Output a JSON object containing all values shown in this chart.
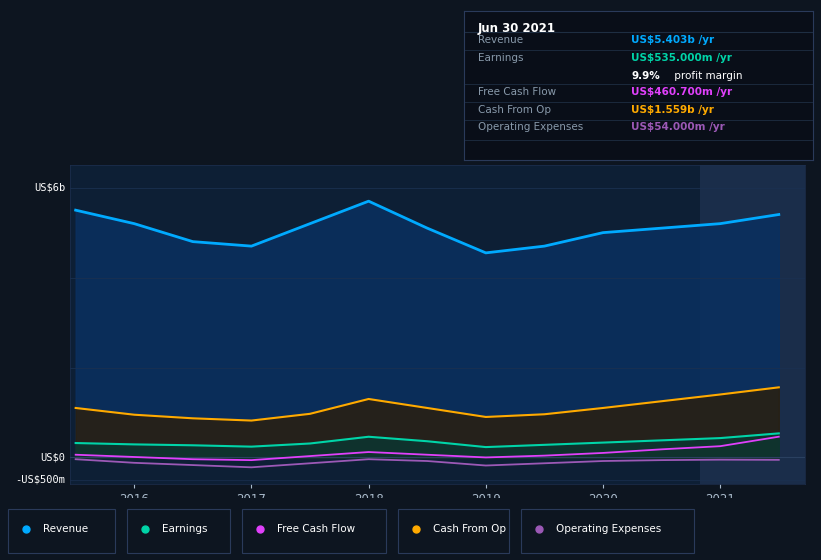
{
  "bg_color": "#0d1520",
  "plot_bg_color": "#0d1f35",
  "x_years": [
    2015.5,
    2016.0,
    2016.5,
    2017.0,
    2017.5,
    2018.0,
    2018.5,
    2019.0,
    2019.5,
    2020.0,
    2020.5,
    2021.0,
    2021.5
  ],
  "revenue": [
    5500,
    5200,
    4800,
    4700,
    5200,
    5700,
    5100,
    4550,
    4700,
    5000,
    5100,
    5200,
    5403
  ],
  "earnings": [
    320,
    290,
    270,
    240,
    310,
    460,
    360,
    230,
    280,
    330,
    380,
    430,
    535
  ],
  "free_cash_flow": [
    60,
    10,
    -40,
    -60,
    30,
    120,
    60,
    0,
    40,
    100,
    180,
    250,
    461
  ],
  "cash_from_op": [
    1100,
    950,
    870,
    820,
    970,
    1300,
    1100,
    900,
    960,
    1100,
    1250,
    1400,
    1559
  ],
  "operating_expenses": [
    -40,
    -120,
    -170,
    -220,
    -130,
    -40,
    -80,
    -180,
    -130,
    -80,
    -60,
    -50,
    -54
  ],
  "revenue_color": "#00aaff",
  "earnings_color": "#00d4a8",
  "free_cash_flow_color": "#e040fb",
  "cash_from_op_color": "#ffaa00",
  "operating_expenses_color": "#9b59b6",
  "revenue_fill": "#0a3060",
  "earnings_fill": "#0d3530",
  "cashop_fill": "#2a2010",
  "ylim_min": -600,
  "ylim_max": 6500,
  "x_min": 2015.45,
  "x_max": 2021.72,
  "highlight_x_start": 2020.83,
  "highlight_x_end": 2021.75,
  "highlight_color": "#1a2d4a",
  "annotation_date": "Jun 30 2021",
  "annotation_revenue": "US$5.403b /yr",
  "annotation_earnings": "US$535.000m /yr",
  "annotation_margin": "9.9% profit margin",
  "annotation_fcf": "US$460.700m /yr",
  "annotation_cfop": "US$1.559b /yr",
  "annotation_opex": "US$54.000m /yr",
  "legend_labels": [
    "Revenue",
    "Earnings",
    "Free Cash Flow",
    "Cash From Op",
    "Operating Expenses"
  ],
  "legend_colors": [
    "#00aaff",
    "#00d4a8",
    "#e040fb",
    "#ffaa00",
    "#9b59b6"
  ],
  "box_bg": "#090e18",
  "box_border": "#2a3a5a",
  "label_color": "#8899aa",
  "sep_color": "#1e2e42"
}
